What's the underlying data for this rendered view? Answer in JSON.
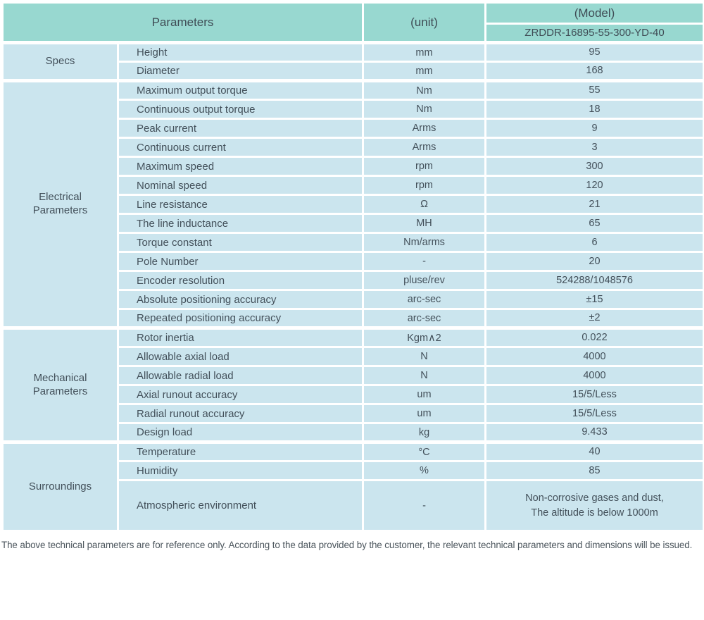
{
  "colors": {
    "header_bg": "#98d8d0",
    "row_bg": "#cbe5ee",
    "grid": "#ffffff",
    "text": "#43505a"
  },
  "table": {
    "header": {
      "parameters_label": "Parameters",
      "unit_label": "(unit)",
      "model_label": "(Model)",
      "model_number": "ZRDDR-16895-55-300-YD-40"
    },
    "sections": [
      {
        "group": "Specs",
        "rows": [
          [
            "Height",
            "mm",
            "95"
          ],
          [
            "Diameter",
            "mm",
            "168"
          ]
        ]
      },
      {
        "group": "Electrical\nParameters",
        "rows": [
          [
            "Maximum output torque",
            "Nm",
            "55"
          ],
          [
            "Continuous output torque",
            "Nm",
            "18"
          ],
          [
            "Peak current",
            "Arms",
            "9"
          ],
          [
            "Continuous current",
            "Arms",
            "3"
          ],
          [
            "Maximum speed",
            "rpm",
            "300"
          ],
          [
            "Nominal speed",
            "rpm",
            "120"
          ],
          [
            "Line resistance",
            "Ω",
            "21"
          ],
          [
            "The line inductance",
            "MH",
            "65"
          ],
          [
            "Torque constant",
            "Nm/arms",
            "6"
          ],
          [
            "Pole Number",
            "-",
            "20"
          ],
          [
            "Encoder resolution",
            "pluse/rev",
            "524288/1048576"
          ],
          [
            "Absolute positioning accuracy",
            "arc-sec",
            "±15"
          ],
          [
            "Repeated positioning accuracy",
            "arc-sec",
            "±2"
          ]
        ]
      },
      {
        "group": "Mechanical\nParameters",
        "rows": [
          [
            "Rotor inertia",
            "Kgm∧2",
            "0.022"
          ],
          [
            "Allowable axial load",
            "N",
            "4000"
          ],
          [
            "Allowable radial load",
            "N",
            "4000"
          ],
          [
            "Axial runout accuracy",
            "um",
            "15/5/Less"
          ],
          [
            "Radial runout accuracy",
            "um",
            "15/5/Less"
          ],
          [
            "Design load",
            "kg",
            "9.433"
          ]
        ]
      },
      {
        "group": "Surroundings",
        "rows": [
          [
            "Temperature",
            "°C",
            "40"
          ],
          [
            "Humidity",
            "%",
            "85"
          ],
          [
            "Atmospheric environment",
            "-",
            "Non-corrosive gases and dust,\nThe altitude is below 1000m"
          ]
        ]
      }
    ],
    "footnote": "The above technical parameters are for reference only. According to the data provided by the customer, the relevant technical parameters and dimensions will be issued."
  }
}
